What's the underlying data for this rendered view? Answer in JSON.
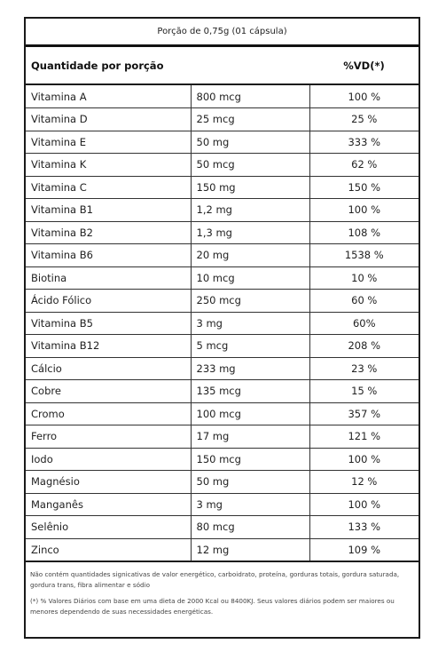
{
  "portion": "Porção de 0,75g (01 cápsula)",
  "header": {
    "label": "Quantidade por porção",
    "vd": "%VD(*)"
  },
  "rows": [
    {
      "name": "Vitamina A",
      "amount": "800 mcg",
      "vd": "100 %"
    },
    {
      "name": "Vitamina D",
      "amount": "25 mcg",
      "vd": "25 %"
    },
    {
      "name": "Vitamina E",
      "amount": "50 mg",
      "vd": "333 %"
    },
    {
      "name": "Vitamina K",
      "amount": "50 mcg",
      "vd": "62 %"
    },
    {
      "name": "Vitamina C",
      "amount": "150 mg",
      "vd": "150 %"
    },
    {
      "name": "Vitamina B1",
      "amount": "1,2 mg",
      "vd": "100 %"
    },
    {
      "name": "Vitamina B2",
      "amount": "1,3 mg",
      "vd": "108 %"
    },
    {
      "name": "Vitamina B6",
      "amount": "20 mg",
      "vd": "1538 %"
    },
    {
      "name": "Biotina",
      "amount": "10 mcg",
      "vd": "10 %"
    },
    {
      "name": "Ácido Fólico",
      "amount": "250 mcg",
      "vd": "60 %"
    },
    {
      "name": "Vitamina B5",
      "amount": "3 mg",
      "vd": "60%"
    },
    {
      "name": "Vitamina B12",
      "amount": "5 mcg",
      "vd": "208 %"
    },
    {
      "name": "Cálcio",
      "amount": "233 mg",
      "vd": "23 %"
    },
    {
      "name": "Cobre",
      "amount": "135 mcg",
      "vd": "15 %"
    },
    {
      "name": "Cromo",
      "amount": "100 mcg",
      "vd": "357 %"
    },
    {
      "name": "Ferro",
      "amount": "17 mg",
      "vd": "121 %"
    },
    {
      "name": "Iodo",
      "amount": "150 mcg",
      "vd": "100 %"
    },
    {
      "name": "Magnésio",
      "amount": "50 mg",
      "vd": "12 %"
    },
    {
      "name": "Manganês",
      "amount": "3 mg",
      "vd": "100 %"
    },
    {
      "name": "Selênio",
      "amount": "80 mcg",
      "vd": "133 %"
    },
    {
      "name": "Zinco",
      "amount": "12 mg",
      "vd": "109 %"
    }
  ],
  "notes": [
    "Não contém quantidades signicativas de valor energético, carboidrato, proteína, gorduras totais, gordura saturada, gordura trans, fibra alimentar e sódio",
    "(*) % Valores Diários com base em uma dieta de 2000 Kcal ou 8400KJ. Seus valores diários podem ser maiores ou menores dependendo de suas necessidades energéticas."
  ]
}
